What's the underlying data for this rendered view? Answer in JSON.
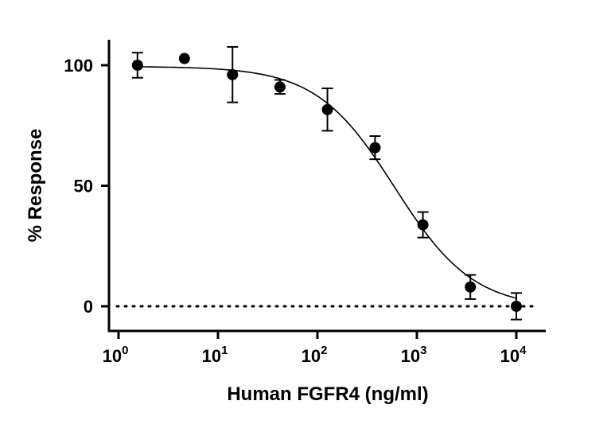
{
  "chart_data": {
    "type": "scatter",
    "xlabel": "Human FGFR4 (ng/ml)",
    "ylabel": "% Response",
    "x_scale": "log10",
    "xlim": [
      1,
      20000
    ],
    "ylim": [
      -10,
      110
    ],
    "x_ticks": [
      {
        "value": 1,
        "base": "10",
        "exp": "0"
      },
      {
        "value": 10,
        "base": "10",
        "exp": "1"
      },
      {
        "value": 100,
        "base": "10",
        "exp": "2"
      },
      {
        "value": 1000,
        "base": "10",
        "exp": "3"
      },
      {
        "value": 10000,
        "base": "10",
        "exp": "4"
      }
    ],
    "y_ticks": [
      {
        "value": 0,
        "label": "0"
      },
      {
        "value": 50,
        "label": "50"
      },
      {
        "value": 100,
        "label": "100"
      }
    ],
    "grid": false,
    "points": [
      {
        "x": 1.55,
        "y": 100.0,
        "err": 5.2
      },
      {
        "x": 4.6,
        "y": 102.8,
        "err": 0
      },
      {
        "x": 14,
        "y": 96.1,
        "err": 11.5
      },
      {
        "x": 42,
        "y": 91.0,
        "err": 2.9
      },
      {
        "x": 126,
        "y": 81.6,
        "err": 8.8
      },
      {
        "x": 380,
        "y": 65.8,
        "err": 4.8
      },
      {
        "x": 1150,
        "y": 33.8,
        "err": 5.3
      },
      {
        "x": 3450,
        "y": 8.0,
        "err": 5.0
      },
      {
        "x": 10000,
        "y": 0.0,
        "err": 5.5
      }
    ],
    "fit_curve": {
      "model": "four-parameter logistic",
      "top": 99.5,
      "bottom": -1,
      "ic50": 600,
      "hill": 1.1
    },
    "reference_line": {
      "y": 0,
      "style": "dotted"
    },
    "colors": {
      "marks": "#000000"
    }
  }
}
